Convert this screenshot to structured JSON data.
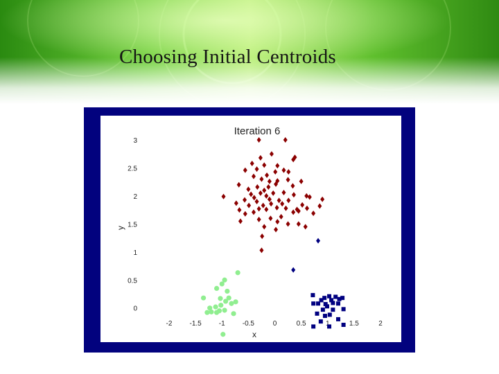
{
  "slide": {
    "title": "Choosing Initial Centroids"
  },
  "colors": {
    "banner_green_dark": "#2f8a12",
    "banner_green_light": "#b8f070",
    "frame_navy": "#02027e",
    "cluster_red": "#8b0000",
    "cluster_blue": "#000080",
    "cluster_green": "#90ee90"
  },
  "chart_data": {
    "type": "scatter",
    "title": "Iteration 6",
    "xlabel": "x",
    "ylabel": "y",
    "xlim": [
      -2,
      2
    ],
    "ylim": [
      -0.3,
      3
    ],
    "grid": false,
    "x_ticks": [
      "-2",
      "-1.5",
      "-1",
      "-0.5",
      "0",
      "0.5",
      "1",
      "1.5",
      "2"
    ],
    "y_ticks": [
      "0",
      "0.5",
      "1",
      "1.5",
      "2",
      "2.5",
      "3"
    ],
    "x_tick_values": [
      -2,
      -1.5,
      -1,
      -0.5,
      0,
      0.5,
      1,
      1.5,
      2
    ],
    "y_tick_values": [
      0,
      0.5,
      1,
      1.5,
      2,
      2.5,
      3
    ],
    "series": [
      {
        "marker": "diamond",
        "color": "#8b0000",
        "points": [
          [
            -0.3,
            3.0
          ],
          [
            0.2,
            3.0
          ],
          [
            -0.06,
            2.75
          ],
          [
            -0.27,
            2.68
          ],
          [
            0.38,
            2.69
          ],
          [
            0.35,
            2.65
          ],
          [
            -0.43,
            2.58
          ],
          [
            -0.2,
            2.55
          ],
          [
            0.05,
            2.54
          ],
          [
            -0.56,
            2.46
          ],
          [
            -0.34,
            2.48
          ],
          [
            0.17,
            2.46
          ],
          [
            0.26,
            2.43
          ],
          [
            0.01,
            2.43
          ],
          [
            -0.15,
            2.37
          ],
          [
            -0.4,
            2.35
          ],
          [
            -0.25,
            2.3
          ],
          [
            0.25,
            2.29
          ],
          [
            -0.1,
            2.26
          ],
          [
            0.05,
            2.27
          ],
          [
            0.5,
            2.26
          ],
          [
            -0.68,
            2.2
          ],
          [
            -0.33,
            2.16
          ],
          [
            -0.5,
            2.12
          ],
          [
            -0.12,
            2.16
          ],
          [
            0.02,
            2.21
          ],
          [
            0.34,
            2.18
          ],
          [
            -0.2,
            2.1
          ],
          [
            -0.27,
            2.05
          ],
          [
            -0.45,
            2.03
          ],
          [
            -0.16,
            2.0
          ],
          [
            0.17,
            2.06
          ],
          [
            -0.03,
            2.05
          ],
          [
            0.36,
            2.02
          ],
          [
            0.6,
            2.0
          ],
          [
            0.66,
            1.98
          ],
          [
            -0.97,
            1.99
          ],
          [
            -0.39,
            1.97
          ],
          [
            -0.1,
            1.94
          ],
          [
            0.08,
            1.92
          ],
          [
            -0.57,
            1.93
          ],
          [
            0.26,
            1.92
          ],
          [
            -0.34,
            1.9
          ],
          [
            -0.73,
            1.87
          ],
          [
            0.9,
            1.94
          ],
          [
            -0.49,
            1.83
          ],
          [
            -0.22,
            1.83
          ],
          [
            -0.07,
            1.86
          ],
          [
            0.14,
            1.86
          ],
          [
            0.52,
            1.84
          ],
          [
            -0.67,
            1.75
          ],
          [
            -0.3,
            1.77
          ],
          [
            -0.16,
            1.76
          ],
          [
            0.04,
            1.79
          ],
          [
            0.21,
            1.78
          ],
          [
            0.42,
            1.76
          ],
          [
            0.61,
            1.78
          ],
          [
            0.85,
            1.82
          ],
          [
            -0.4,
            1.71
          ],
          [
            0.45,
            1.73
          ],
          [
            -0.56,
            1.68
          ],
          [
            0.35,
            1.71
          ],
          [
            0.73,
            1.69
          ],
          [
            0.12,
            1.63
          ],
          [
            -0.08,
            1.6
          ],
          [
            -0.3,
            1.58
          ],
          [
            0.05,
            1.54
          ],
          [
            0.25,
            1.5
          ],
          [
            0.45,
            1.5
          ],
          [
            -0.2,
            1.45
          ],
          [
            0.02,
            1.4
          ],
          [
            0.58,
            1.45
          ],
          [
            -0.65,
            1.55
          ],
          [
            -0.24,
            1.28
          ],
          [
            -0.25,
            1.03
          ]
        ]
      },
      {
        "marker": "square",
        "color": "#000080",
        "points": [
          [
            0.72,
            0.23
          ],
          [
            0.94,
            0.18
          ],
          [
            1.03,
            0.21
          ],
          [
            1.15,
            0.2
          ],
          [
            1.22,
            0.16
          ],
          [
            1.28,
            0.18
          ],
          [
            0.88,
            0.14
          ],
          [
            1.07,
            0.14
          ],
          [
            0.73,
            0.08
          ],
          [
            0.82,
            0.08
          ],
          [
            0.96,
            0.07
          ],
          [
            1.1,
            0.09
          ],
          [
            1.2,
            0.08
          ],
          [
            0.99,
            0.03
          ],
          [
            0.91,
            -0.03
          ],
          [
            1.1,
            -0.03
          ],
          [
            1.3,
            -0.02
          ],
          [
            0.8,
            -0.1
          ],
          [
            0.95,
            -0.14
          ],
          [
            1.04,
            -0.12
          ],
          [
            0.87,
            -0.24
          ],
          [
            1.2,
            -0.2
          ],
          [
            1.3,
            -0.3
          ],
          [
            1.03,
            -0.33
          ],
          [
            0.73,
            -0.33
          ]
        ]
      },
      {
        "marker": "diamond",
        "color": "#000080",
        "points": [
          [
            0.35,
            0.68
          ],
          [
            0.82,
            1.2
          ]
        ]
      },
      {
        "marker": "circle",
        "color": "#90ee90",
        "points": [
          [
            -0.7,
            0.63
          ],
          [
            -0.95,
            0.5
          ],
          [
            -1.0,
            0.43
          ],
          [
            -1.1,
            0.35
          ],
          [
            -0.9,
            0.3
          ],
          [
            -1.35,
            0.18
          ],
          [
            -1.03,
            0.17
          ],
          [
            -0.87,
            0.18
          ],
          [
            -0.93,
            0.12
          ],
          [
            -0.82,
            0.08
          ],
          [
            -0.74,
            0.11
          ],
          [
            -1.02,
            0.05
          ],
          [
            -1.12,
            0.02
          ],
          [
            -1.23,
            0.0
          ],
          [
            -1.05,
            -0.05
          ],
          [
            -1.1,
            -0.08
          ],
          [
            -0.95,
            -0.04
          ],
          [
            -0.78,
            -0.1
          ],
          [
            -1.28,
            -0.08
          ],
          [
            -1.2,
            -0.07
          ],
          [
            -0.98,
            -0.47
          ]
        ]
      }
    ]
  }
}
